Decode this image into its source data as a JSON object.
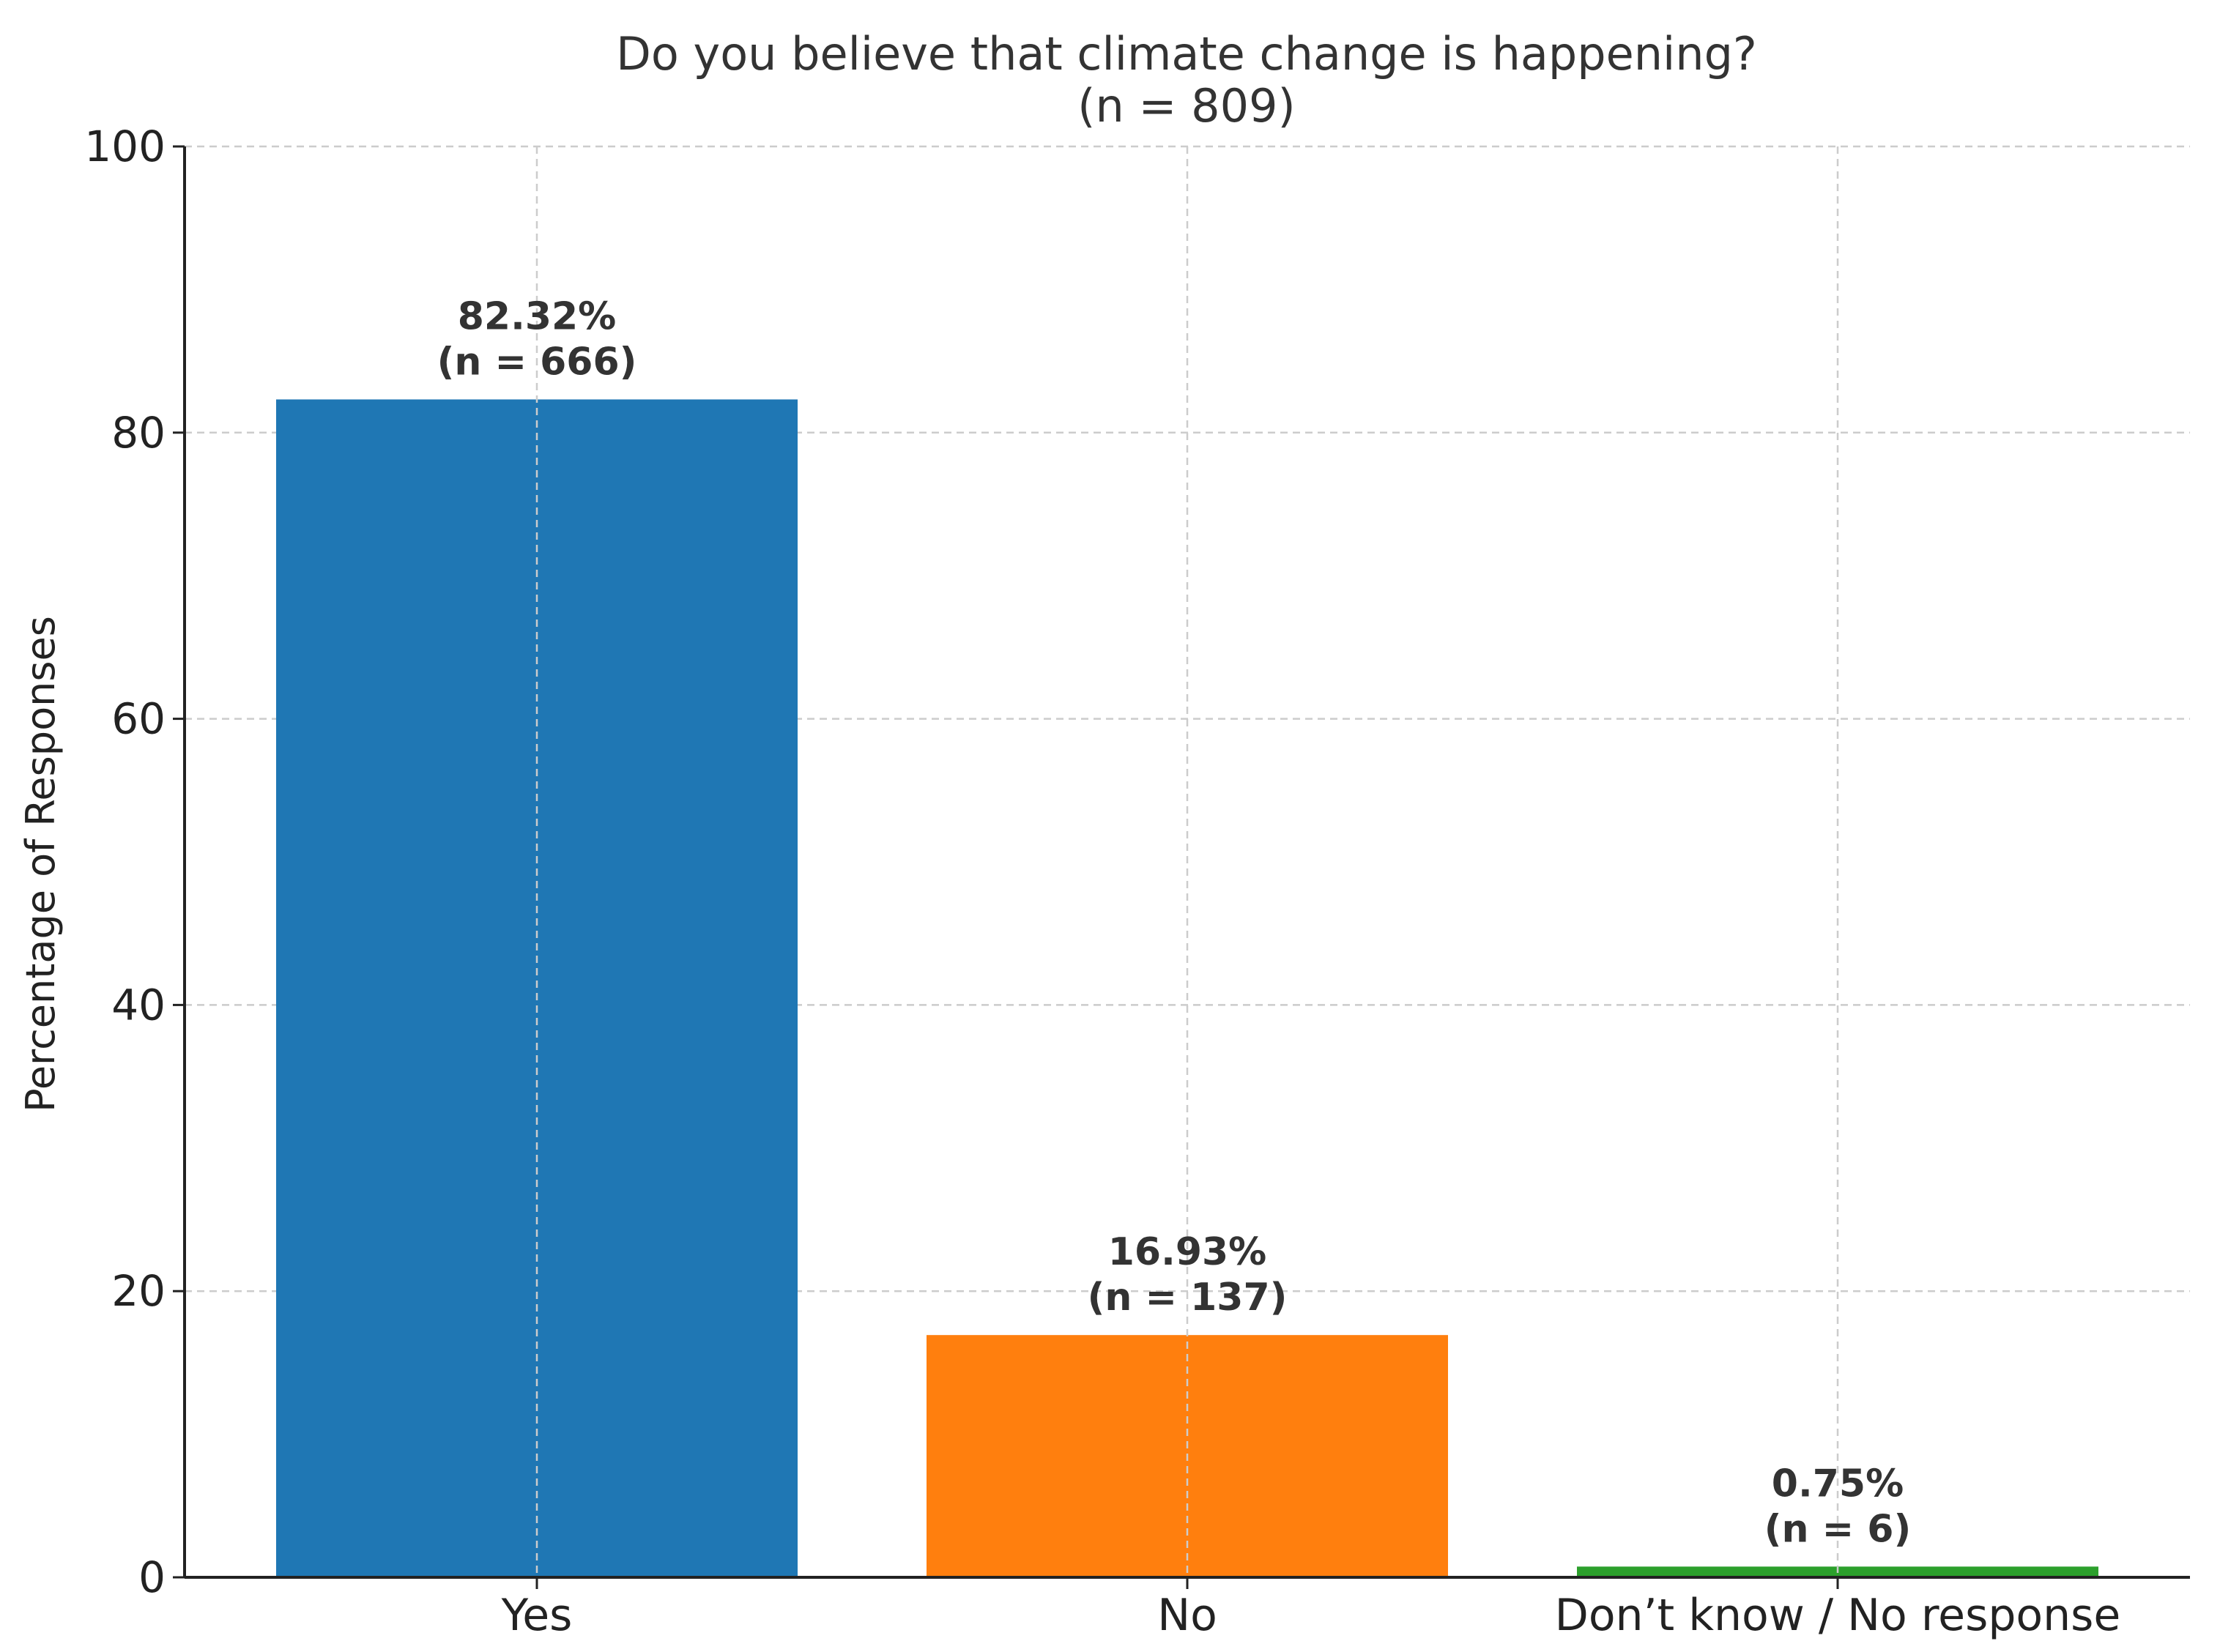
{
  "chart_data": {
    "type": "bar",
    "title": "Do you believe that climate change is happening?",
    "subtitle": "(n = 809)",
    "xlabel": "",
    "ylabel": "Percentage of Responses",
    "ylim": [
      0,
      100
    ],
    "yticks": [
      0,
      20,
      40,
      60,
      80,
      100
    ],
    "grid": true,
    "categories": [
      "Yes",
      "No",
      "Don’t know / No response"
    ],
    "values": [
      82.32,
      16.93,
      0.75
    ],
    "value_labels": [
      "82.32%",
      "16.93%",
      "0.75%"
    ],
    "count_labels": [
      "(n = 666)",
      "(n = 137)",
      "(n = 6)"
    ],
    "colors": [
      "#1f77b4",
      "#ff7f0e",
      "#2ca02c"
    ]
  }
}
